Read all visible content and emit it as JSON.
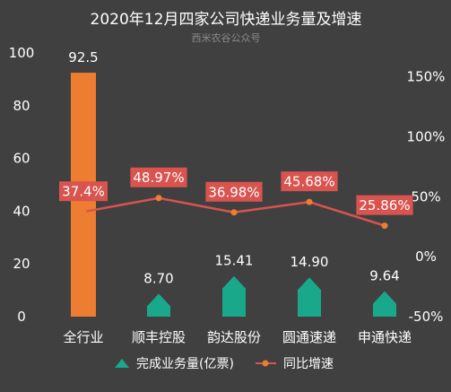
{
  "chart_data": {
    "type": "bar",
    "title": "2020年12月四家公司快递业务量及增速",
    "subtitle": "西米农谷公众号",
    "categories": [
      "全行业",
      "顺丰控股",
      "韵达股份",
      "圆通速递",
      "申通快递"
    ],
    "series": [
      {
        "name": "完成业务量(亿票)",
        "type": "bar",
        "axis": "left",
        "values": [
          92.5,
          8.7,
          15.41,
          14.9,
          9.64
        ],
        "labels": [
          "92.5",
          "8.70",
          "15.41",
          "14.90",
          "9.64"
        ],
        "colors": [
          "#ED7D31",
          "#1AA88A",
          "#1AA88A",
          "#1AA88A",
          "#1AA88A"
        ]
      },
      {
        "name": "同比增速",
        "type": "line",
        "axis": "right",
        "values": [
          37.4,
          48.97,
          36.98,
          45.68,
          25.86
        ],
        "labels": [
          "37.4%",
          "48.97%",
          "36.98%",
          "45.68%",
          "25.86%"
        ],
        "color": "#D9534F"
      }
    ],
    "y_left": {
      "range": [
        0,
        100
      ],
      "ticks": [
        "0",
        "20",
        "40",
        "60",
        "80",
        "100"
      ]
    },
    "y_right": {
      "range": [
        -50,
        170
      ],
      "ticks": [
        "-50%",
        "0%",
        "50%",
        "100%",
        "150%"
      ]
    },
    "grid": false,
    "legend_position": "bottom"
  }
}
